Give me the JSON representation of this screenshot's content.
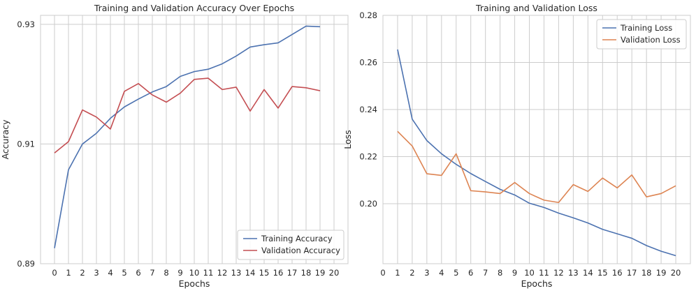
{
  "chart_data": [
    {
      "type": "line",
      "title": "Training and Validation Accuracy Over Epochs",
      "xlabel": "Epochs",
      "ylabel": "Accuracy",
      "x_ticks": [
        0,
        1,
        2,
        3,
        4,
        5,
        6,
        7,
        8,
        9,
        10,
        11,
        12,
        13,
        14,
        15,
        16,
        17,
        18,
        19,
        20
      ],
      "y_ticks": [
        0.89,
        0.91,
        0.93
      ],
      "y_tick_labels": [
        "0.89",
        "0.91",
        "0.93"
      ],
      "xlim": [
        -1,
        21
      ],
      "ylim": [
        0.89,
        0.9315
      ],
      "grid": true,
      "legend_position": "lower right",
      "x": [
        0,
        1,
        2,
        3,
        4,
        5,
        6,
        7,
        8,
        9,
        10,
        11,
        12,
        13,
        14,
        15,
        16,
        17,
        18,
        19
      ],
      "series": [
        {
          "name": "Training Accuracy",
          "color": "#4c72b0",
          "values": [
            0.8926,
            0.9057,
            0.91,
            0.9118,
            0.9143,
            0.9162,
            0.9175,
            0.9187,
            0.9196,
            0.9213,
            0.9221,
            0.9225,
            0.9234,
            0.9247,
            0.9262,
            0.9266,
            0.9269,
            0.9283,
            0.9297,
            0.9296
          ]
        },
        {
          "name": "Validation Accuracy",
          "color": "#c44e52",
          "values": [
            0.9085,
            0.9104,
            0.9157,
            0.9145,
            0.9125,
            0.9188,
            0.9201,
            0.9182,
            0.917,
            0.9185,
            0.9208,
            0.921,
            0.9191,
            0.9195,
            0.9155,
            0.9191,
            0.916,
            0.9196,
            0.9194,
            0.9189
          ]
        }
      ]
    },
    {
      "type": "line",
      "title": "Training and Validation Loss",
      "xlabel": "Epochs",
      "ylabel": "Loss",
      "x_ticks": [
        0,
        1,
        2,
        3,
        4,
        5,
        6,
        7,
        8,
        9,
        10,
        11,
        12,
        13,
        14,
        15,
        16,
        17,
        18,
        19,
        20
      ],
      "y_ticks": [
        0.2,
        0.22,
        0.24,
        0.26,
        0.28
      ],
      "y_tick_labels": [
        "0.20",
        "0.22",
        "0.24",
        "0.26",
        "0.28"
      ],
      "xlim": [
        0,
        21
      ],
      "ylim": [
        0.1745,
        0.28
      ],
      "grid": true,
      "legend_position": "upper right",
      "x": [
        1,
        2,
        3,
        4,
        5,
        6,
        7,
        8,
        9,
        10,
        11,
        12,
        13,
        14,
        15,
        16,
        17,
        18,
        19,
        20
      ],
      "series": [
        {
          "name": "Training Loss",
          "color": "#4c72b0",
          "values": [
            0.2655,
            0.2359,
            0.2268,
            0.2212,
            0.2167,
            0.2128,
            0.2094,
            0.2061,
            0.2037,
            0.2002,
            0.1984,
            0.196,
            0.194,
            0.1918,
            0.1891,
            0.1872,
            0.1853,
            0.1822,
            0.1798,
            0.1779
          ]
        },
        {
          "name": "Validation Loss",
          "color": "#dd8452",
          "values": [
            0.2307,
            0.2245,
            0.2127,
            0.212,
            0.2212,
            0.2055,
            0.205,
            0.2043,
            0.209,
            0.2043,
            0.2015,
            0.2005,
            0.2081,
            0.2052,
            0.2109,
            0.2067,
            0.2122,
            0.2029,
            0.2043,
            0.2076
          ]
        }
      ]
    }
  ]
}
